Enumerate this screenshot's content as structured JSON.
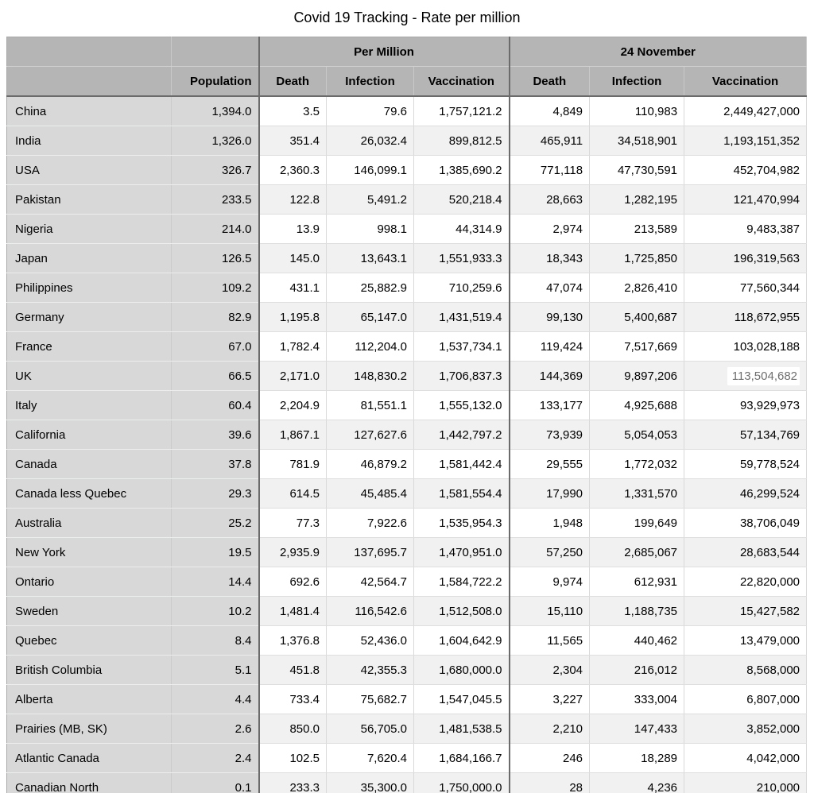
{
  "title": "Covid 19 Tracking - Rate per million",
  "colors": {
    "header_bg": "#b5b5b5",
    "rowheader_bg": "#d8d8d8",
    "stripe_bg": "#f1f1f1",
    "group_border": "#6b6b6b",
    "highlight_cell_bg": "#ffffff",
    "highlight_cell_text": "#6e6e6e"
  },
  "table": {
    "group_headers": {
      "per_million": "Per Million",
      "date": "24 November"
    },
    "column_headers": {
      "population": "Population",
      "death": "Death",
      "infection": "Infection",
      "vaccination": "Vaccination"
    },
    "highlight_cell": {
      "row": 9,
      "col": 6
    },
    "rows": [
      {
        "label": "China",
        "cells": [
          "1,394.0",
          "3.5",
          "79.6",
          "1,757,121.2",
          "4,849",
          "110,983",
          "2,449,427,000"
        ]
      },
      {
        "label": "India",
        "cells": [
          "1,326.0",
          "351.4",
          "26,032.4",
          "899,812.5",
          "465,911",
          "34,518,901",
          "1,193,151,352"
        ]
      },
      {
        "label": "USA",
        "cells": [
          "326.7",
          "2,360.3",
          "146,099.1",
          "1,385,690.2",
          "771,118",
          "47,730,591",
          "452,704,982"
        ]
      },
      {
        "label": "Pakistan",
        "cells": [
          "233.5",
          "122.8",
          "5,491.2",
          "520,218.4",
          "28,663",
          "1,282,195",
          "121,470,994"
        ]
      },
      {
        "label": "Nigeria",
        "cells": [
          "214.0",
          "13.9",
          "998.1",
          "44,314.9",
          "2,974",
          "213,589",
          "9,483,387"
        ]
      },
      {
        "label": "Japan",
        "cells": [
          "126.5",
          "145.0",
          "13,643.1",
          "1,551,933.3",
          "18,343",
          "1,725,850",
          "196,319,563"
        ]
      },
      {
        "label": "Philippines",
        "cells": [
          "109.2",
          "431.1",
          "25,882.9",
          "710,259.6",
          "47,074",
          "2,826,410",
          "77,560,344"
        ]
      },
      {
        "label": "Germany",
        "cells": [
          "82.9",
          "1,195.8",
          "65,147.0",
          "1,431,519.4",
          "99,130",
          "5,400,687",
          "118,672,955"
        ]
      },
      {
        "label": "France",
        "cells": [
          "67.0",
          "1,782.4",
          "112,204.0",
          "1,537,734.1",
          "119,424",
          "7,517,669",
          "103,028,188"
        ]
      },
      {
        "label": "UK",
        "cells": [
          "66.5",
          "2,171.0",
          "148,830.2",
          "1,706,837.3",
          "144,369",
          "9,897,206",
          "113,504,682"
        ]
      },
      {
        "label": "Italy",
        "cells": [
          "60.4",
          "2,204.9",
          "81,551.1",
          "1,555,132.0",
          "133,177",
          "4,925,688",
          "93,929,973"
        ]
      },
      {
        "label": "California",
        "cells": [
          "39.6",
          "1,867.1",
          "127,627.6",
          "1,442,797.2",
          "73,939",
          "5,054,053",
          "57,134,769"
        ]
      },
      {
        "label": "Canada",
        "cells": [
          "37.8",
          "781.9",
          "46,879.2",
          "1,581,442.4",
          "29,555",
          "1,772,032",
          "59,778,524"
        ]
      },
      {
        "label": "Canada less Quebec",
        "cells": [
          "29.3",
          "614.5",
          "45,485.4",
          "1,581,554.4",
          "17,990",
          "1,331,570",
          "46,299,524"
        ]
      },
      {
        "label": "Australia",
        "cells": [
          "25.2",
          "77.3",
          "7,922.6",
          "1,535,954.3",
          "1,948",
          "199,649",
          "38,706,049"
        ]
      },
      {
        "label": "New York",
        "cells": [
          "19.5",
          "2,935.9",
          "137,695.7",
          "1,470,951.0",
          "57,250",
          "2,685,067",
          "28,683,544"
        ]
      },
      {
        "label": "Ontario",
        "cells": [
          "14.4",
          "692.6",
          "42,564.7",
          "1,584,722.2",
          "9,974",
          "612,931",
          "22,820,000"
        ]
      },
      {
        "label": "Sweden",
        "cells": [
          "10.2",
          "1,481.4",
          "116,542.6",
          "1,512,508.0",
          "15,110",
          "1,188,735",
          "15,427,582"
        ]
      },
      {
        "label": "Quebec",
        "cells": [
          "8.4",
          "1,376.8",
          "52,436.0",
          "1,604,642.9",
          "11,565",
          "440,462",
          "13,479,000"
        ]
      },
      {
        "label": "British Columbia",
        "cells": [
          "5.1",
          "451.8",
          "42,355.3",
          "1,680,000.0",
          "2,304",
          "216,012",
          "8,568,000"
        ]
      },
      {
        "label": "Alberta",
        "cells": [
          "4.4",
          "733.4",
          "75,682.7",
          "1,547,045.5",
          "3,227",
          "333,004",
          "6,807,000"
        ]
      },
      {
        "label": "Prairies (MB, SK)",
        "cells": [
          "2.6",
          "850.0",
          "56,705.0",
          "1,481,538.5",
          "2,210",
          "147,433",
          "3,852,000"
        ]
      },
      {
        "label": "Atlantic Canada",
        "cells": [
          "2.4",
          "102.5",
          "7,620.4",
          "1,684,166.7",
          "246",
          "18,289",
          "4,042,000"
        ]
      },
      {
        "label": "Canadian North",
        "cells": [
          "0.1",
          "233.3",
          "35,300.0",
          "1,750,000.0",
          "28",
          "4,236",
          "210,000"
        ]
      }
    ]
  }
}
